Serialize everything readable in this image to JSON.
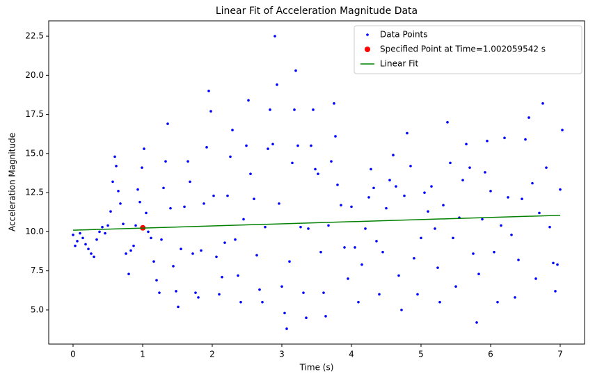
{
  "chart_data": {
    "type": "scatter",
    "title": "Linear Fit of Acceleration Magnitude Data",
    "x_label": "Time (s)",
    "y_label": "Acceleration Magnitude",
    "xlim": [
      -0.35,
      7.35
    ],
    "ylim": [
      2.82,
      23.48
    ],
    "xticks": [
      0,
      1,
      2,
      3,
      4,
      5,
      6,
      7
    ],
    "yticks": [
      {
        "value": 5.0,
        "label": "5.0"
      },
      7.5,
      {
        "value": 10.0,
        "label": "10.0"
      },
      12.5,
      {
        "value": 15.0,
        "label": "15.0"
      },
      17.5,
      {
        "value": 20.0,
        "label": "20.0"
      },
      22.5
    ],
    "legend": "upper right",
    "series": [
      {
        "name": "Data Points",
        "color": "#0000ff",
        "type": "scatter",
        "x": [
          0,
          0.03,
          0.06,
          0.1,
          0.14,
          0.18,
          0.22,
          0.26,
          0.3,
          0.34,
          0.38,
          0.42,
          0.46,
          0.5,
          0.54,
          0.57,
          0.6,
          0.62,
          0.65,
          0.68,
          0.72,
          0.76,
          0.8,
          0.83,
          0.87,
          0.9,
          0.93,
          0.96,
          0.99,
          1.02,
          1.05,
          1.08,
          1.12,
          1.16,
          1.2,
          1.24,
          1.27,
          1.3,
          1.33,
          1.36,
          1.4,
          1.44,
          1.48,
          1.51,
          1.55,
          1.6,
          1.65,
          1.68,
          1.72,
          1.76,
          1.8,
          1.84,
          1.88,
          1.92,
          1.95,
          1.98,
          2.02,
          2.06,
          2.1,
          2.14,
          2.18,
          2.22,
          2.26,
          2.29,
          2.33,
          2.37,
          2.41,
          2.45,
          2.49,
          2.52,
          2.55,
          2.6,
          2.64,
          2.68,
          2.72,
          2.76,
          2.8,
          2.83,
          2.87,
          2.9,
          2.93,
          2.96,
          3.0,
          3.04,
          3.07,
          3.11,
          3.15,
          3.18,
          3.2,
          3.23,
          3.27,
          3.31,
          3.35,
          3.38,
          3.42,
          3.45,
          3.48,
          3.52,
          3.56,
          3.6,
          3.63,
          3.67,
          3.71,
          3.75,
          3.77,
          3.8,
          3.85,
          3.9,
          3.95,
          4.0,
          4.05,
          4.1,
          4.15,
          4.2,
          4.25,
          4.28,
          4.32,
          4.36,
          4.4,
          4.45,
          4.5,
          4.55,
          4.6,
          4.64,
          4.68,
          4.72,
          4.76,
          4.8,
          4.85,
          4.9,
          4.95,
          5.0,
          5.05,
          5.1,
          5.15,
          5.2,
          5.24,
          5.27,
          5.32,
          5.38,
          5.42,
          5.46,
          5.5,
          5.55,
          5.6,
          5.65,
          5.7,
          5.75,
          5.8,
          5.83,
          5.88,
          5.92,
          5.95,
          6.0,
          6.05,
          6.1,
          6.15,
          6.2,
          6.25,
          6.3,
          6.35,
          6.4,
          6.45,
          6.5,
          6.55,
          6.6,
          6.65,
          6.7,
          6.75,
          6.8,
          6.85,
          6.9,
          6.93,
          6.96,
          7.0,
          7.03
        ],
        "values": [
          9.8,
          9.1,
          9.4,
          9.9,
          9.6,
          9.2,
          8.9,
          8.6,
          8.4,
          9.5,
          10.0,
          10.3,
          9.9,
          10.4,
          11.3,
          13.2,
          14.8,
          14.2,
          12.6,
          11.8,
          10.5,
          8.6,
          7.3,
          8.8,
          9.1,
          10.4,
          12.7,
          11.9,
          14.1,
          15.3,
          11.2,
          10.0,
          9.6,
          8.1,
          6.9,
          6.1,
          9.5,
          12.8,
          14.5,
          16.9,
          11.5,
          7.8,
          6.2,
          5.2,
          8.9,
          11.6,
          14.5,
          13.2,
          8.6,
          6.1,
          5.8,
          8.8,
          11.8,
          15.4,
          19.0,
          17.7,
          12.3,
          8.4,
          6.0,
          7.1,
          9.3,
          12.3,
          14.8,
          16.5,
          9.5,
          7.2,
          5.5,
          10.8,
          15.5,
          18.4,
          13.7,
          12.1,
          8.5,
          6.3,
          5.5,
          10.3,
          15.3,
          17.8,
          15.6,
          22.5,
          19.4,
          11.8,
          6.5,
          4.8,
          3.8,
          8.1,
          14.4,
          17.8,
          20.3,
          15.5,
          10.3,
          6.1,
          4.5,
          10.2,
          15.5,
          17.8,
          14.0,
          13.7,
          8.7,
          6.1,
          4.6,
          10.4,
          14.5,
          18.2,
          16.1,
          13.0,
          11.7,
          9.0,
          7.0,
          11.6,
          9.0,
          5.5,
          7.9,
          10.2,
          12.2,
          14.0,
          12.8,
          9.4,
          6.0,
          8.7,
          11.5,
          13.3,
          14.9,
          12.9,
          7.2,
          5.0,
          12.3,
          16.3,
          14.2,
          8.3,
          6.0,
          9.6,
          12.5,
          11.3,
          12.9,
          10.2,
          7.7,
          5.5,
          11.7,
          17.0,
          14.4,
          9.6,
          6.5,
          10.9,
          13.3,
          15.6,
          14.1,
          8.6,
          4.2,
          7.3,
          10.8,
          13.8,
          15.8,
          12.6,
          8.7,
          5.5,
          10.4,
          16.0,
          12.2,
          9.8,
          5.8,
          8.2,
          12.1,
          15.9,
          17.3,
          13.1,
          7.0,
          11.2,
          18.2,
          14.1,
          10.3,
          8.0,
          6.2,
          7.9,
          12.7,
          16.5
        ]
      },
      {
        "name": "Specified Point at Time=1.002059542 s",
        "color": "#ff0000",
        "type": "scatter",
        "x": [
          1.002059542
        ],
        "values": [
          10.25
        ]
      },
      {
        "name": "Linear Fit",
        "color": "#008000",
        "type": "line",
        "x": [
          0,
          7
        ],
        "values": [
          10.1,
          11.05
        ]
      }
    ]
  }
}
